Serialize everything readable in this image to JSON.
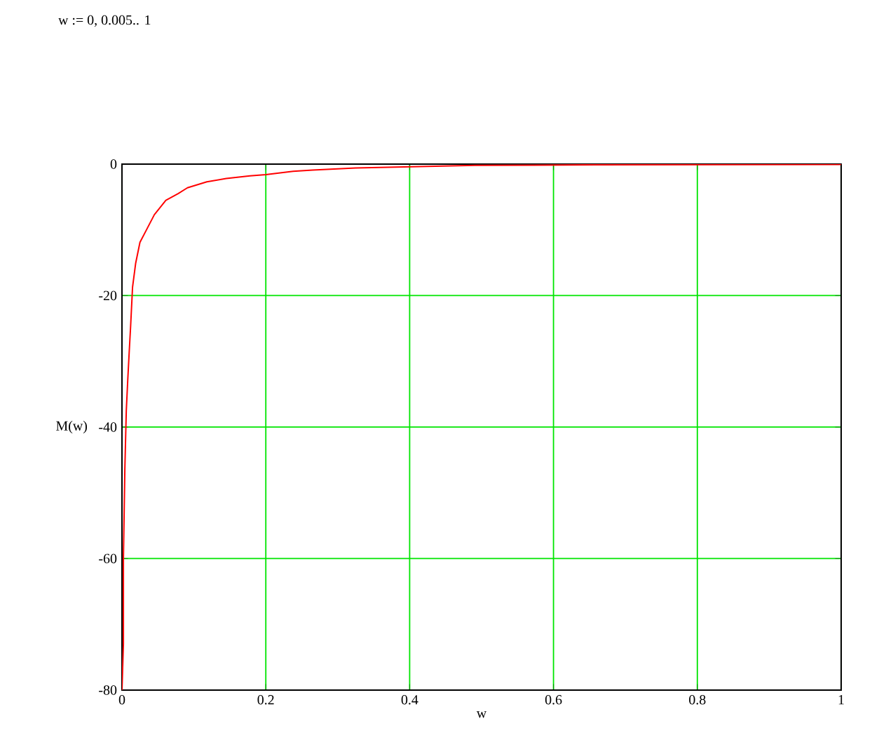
{
  "chart_data": {
    "type": "line",
    "xlabel": "w",
    "ylabel": "M(w)",
    "annotations": [
      "w := 0, 0.005.. 1"
    ],
    "x": [
      0.0,
      0.002,
      0.002,
      0.004,
      0.006,
      0.008,
      0.01,
      0.012,
      0.0147,
      0.019,
      0.025,
      0.035,
      0.045,
      0.061,
      0.078,
      0.091,
      0.118,
      0.145,
      0.178,
      0.2,
      0.238,
      0.265,
      0.325,
      0.491,
      0.66,
      0.998,
      1.0
    ],
    "series": [
      {
        "color": "#ff0000",
        "values": [
          -80,
          -73,
          -60,
          -46.4,
          -37.5,
          -32.9,
          -28.7,
          -24.7,
          -18.7,
          -15.1,
          -11.9,
          -9.8,
          -7.7,
          -5.5,
          -4.5,
          -3.6,
          -2.7,
          -2.2,
          -1.8,
          -1.6,
          -1.1,
          -0.9,
          -0.6,
          -0.2,
          -0.1,
          -0.05,
          0
        ]
      }
    ],
    "xlim": [
      0,
      1
    ],
    "ylim": [
      -80,
      0
    ],
    "xticks": [
      0,
      0.2,
      0.4,
      0.6,
      0.8,
      1
    ],
    "yticks": [
      -80,
      -60,
      -40,
      -20,
      0
    ],
    "grid": true,
    "marker": "none",
    "line_style": "solid"
  }
}
